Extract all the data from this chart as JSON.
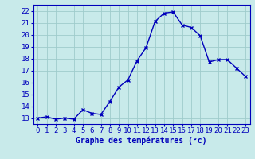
{
  "x": [
    0,
    1,
    2,
    3,
    4,
    5,
    6,
    7,
    8,
    9,
    10,
    11,
    12,
    13,
    14,
    15,
    16,
    17,
    18,
    19,
    20,
    21,
    22,
    23
  ],
  "y": [
    13.0,
    13.1,
    12.9,
    13.0,
    12.9,
    13.7,
    13.4,
    13.3,
    14.4,
    15.6,
    16.2,
    17.8,
    18.9,
    21.1,
    21.8,
    21.9,
    20.8,
    20.6,
    19.9,
    17.7,
    17.9,
    17.9,
    17.2,
    16.5
  ],
  "line_color": "#0000bb",
  "marker": "x",
  "marker_size": 3,
  "bg_color": "#c8eaea",
  "grid_color": "#9fcccc",
  "xlabel": "Graphe des températures (°c)",
  "xlabel_color": "#0000bb",
  "xlabel_fontsize": 7,
  "ylim": [
    12.5,
    22.5
  ],
  "xlim": [
    -0.5,
    23.5
  ],
  "yticks": [
    13,
    14,
    15,
    16,
    17,
    18,
    19,
    20,
    21,
    22
  ],
  "xticks": [
    0,
    1,
    2,
    3,
    4,
    5,
    6,
    7,
    8,
    9,
    10,
    11,
    12,
    13,
    14,
    15,
    16,
    17,
    18,
    19,
    20,
    21,
    22,
    23
  ],
  "xtick_labels": [
    "0",
    "1",
    "2",
    "3",
    "4",
    "5",
    "6",
    "7",
    "8",
    "9",
    "10",
    "11",
    "12",
    "13",
    "14",
    "15",
    "16",
    "17",
    "18",
    "19",
    "20",
    "21",
    "22",
    "23"
  ],
  "tick_color": "#0000bb",
  "tick_fontsize": 6.5,
  "linewidth": 1.0
}
